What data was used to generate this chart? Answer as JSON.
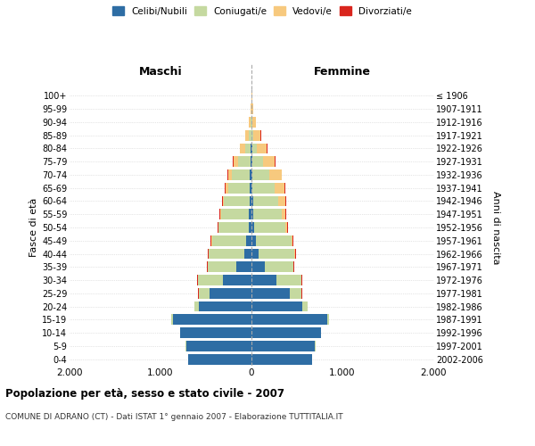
{
  "age_groups": [
    "0-4",
    "5-9",
    "10-14",
    "15-19",
    "20-24",
    "25-29",
    "30-34",
    "35-39",
    "40-44",
    "45-49",
    "50-54",
    "55-59",
    "60-64",
    "65-69",
    "70-74",
    "75-79",
    "80-84",
    "85-89",
    "90-94",
    "95-99",
    "100+"
  ],
  "birth_years": [
    "2002-2006",
    "1997-2001",
    "1992-1996",
    "1987-1991",
    "1982-1986",
    "1977-1981",
    "1972-1976",
    "1967-1971",
    "1962-1966",
    "1957-1961",
    "1952-1956",
    "1947-1951",
    "1942-1946",
    "1937-1941",
    "1932-1936",
    "1927-1931",
    "1922-1926",
    "1917-1921",
    "1912-1916",
    "1907-1911",
    "≤ 1906"
  ],
  "males": {
    "celibi": [
      700,
      720,
      780,
      860,
      580,
      460,
      310,
      170,
      80,
      55,
      30,
      25,
      20,
      18,
      15,
      10,
      5,
      2,
      1,
      0,
      0
    ],
    "coniugati": [
      0,
      1,
      3,
      20,
      50,
      120,
      280,
      310,
      390,
      380,
      330,
      310,
      280,
      240,
      200,
      140,
      60,
      30,
      10,
      3,
      2
    ],
    "vedovi": [
      0,
      0,
      0,
      0,
      0,
      0,
      0,
      0,
      1,
      2,
      5,
      8,
      15,
      30,
      40,
      50,
      60,
      40,
      15,
      5,
      2
    ],
    "divorziati": [
      0,
      0,
      0,
      1,
      2,
      5,
      5,
      8,
      10,
      10,
      10,
      10,
      8,
      8,
      5,
      5,
      1,
      1,
      0,
      0,
      0
    ]
  },
  "females": {
    "nubili": [
      670,
      700,
      760,
      830,
      560,
      420,
      270,
      150,
      75,
      50,
      28,
      22,
      18,
      12,
      10,
      8,
      5,
      2,
      2,
      0,
      0
    ],
    "coniugate": [
      0,
      1,
      4,
      25,
      55,
      130,
      280,
      310,
      400,
      390,
      340,
      310,
      280,
      240,
      190,
      120,
      55,
      20,
      8,
      3,
      1
    ],
    "vedove": [
      0,
      0,
      0,
      0,
      0,
      0,
      1,
      2,
      3,
      8,
      20,
      40,
      75,
      110,
      130,
      130,
      110,
      80,
      40,
      15,
      5
    ],
    "divorziate": [
      0,
      0,
      0,
      1,
      2,
      5,
      8,
      10,
      15,
      15,
      12,
      12,
      8,
      8,
      5,
      5,
      2,
      1,
      0,
      0,
      0
    ]
  },
  "color_celibi": "#2e6da4",
  "color_coniugati": "#c5d9a0",
  "color_vedovi": "#f7c97e",
  "color_divorziati": "#d9251d",
  "title_main": "Popolazione per età, sesso e stato civile - 2007",
  "title_sub": "COMUNE DI ADRANO (CT) - Dati ISTAT 1° gennaio 2007 - Elaborazione TUTTITALIA.IT",
  "ylabel_left": "Fasce di età",
  "ylabel_right": "Anni di nascita",
  "xlabel_left": "Maschi",
  "xlabel_right": "Femmine",
  "xlim": 2000,
  "background_color": "#ffffff",
  "grid_color": "#cccccc"
}
